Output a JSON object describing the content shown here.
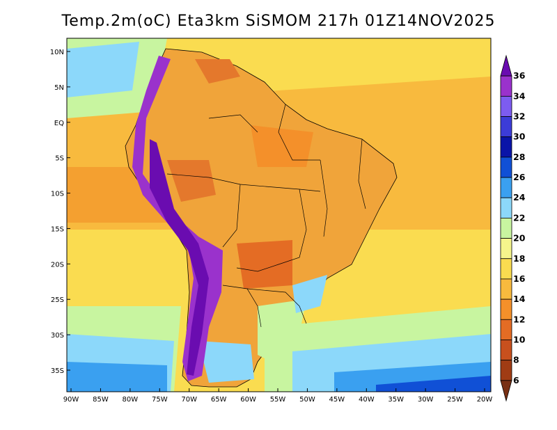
{
  "title": "Temp.2m(oC) Eta3km SiSMOM 217h 01Z14NOV2025",
  "colorbar": {
    "labels": [
      "6",
      "8",
      "10",
      "12",
      "14",
      "16",
      "18",
      "20",
      "22",
      "24",
      "26",
      "28",
      "30",
      "32",
      "34",
      "36"
    ],
    "colors": [
      "#6a0cb0",
      "#9a32cc",
      "#7d5cf0",
      "#3c3cd8",
      "#0a14a8",
      "#1050d6",
      "#3aa0f0",
      "#8cd8fa",
      "#c8f5a0",
      "#f5f58c",
      "#fadc50",
      "#f8ba3e",
      "#f4902a",
      "#e46c24",
      "#c8501e",
      "#a03c14",
      "#783014"
    ]
  },
  "axes": {
    "x_labels": [
      "90W",
      "85W",
      "80W",
      "75W",
      "70W",
      "65W",
      "60W",
      "55W",
      "50W",
      "45W",
      "40W",
      "35W",
      "30W",
      "25W",
      "20W"
    ],
    "y_labels": [
      "10N",
      "5N",
      "EQ",
      "5S",
      "10S",
      "15S",
      "20S",
      "25S",
      "30S",
      "35S"
    ]
  },
  "colors": {
    "ocean_warm": "#f8ba3e",
    "ocean_mild": "#fadc50",
    "ocean_cool": "#8cd8fa",
    "land_hot": "#e4782c",
    "andes_cold": "#6a0cb0"
  }
}
